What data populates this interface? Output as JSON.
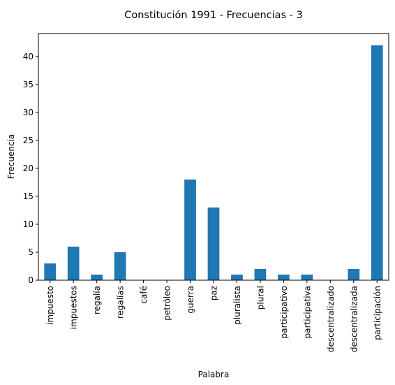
{
  "chart_data": {
    "type": "bar",
    "title": "Constitución 1991 - Frecuencias - 3",
    "xlabel": "Palabra",
    "ylabel": "Frecuencia",
    "categories": [
      "impuesto",
      "impuestos",
      "regalía",
      "regalías",
      "café",
      "petróleo",
      "guerra",
      "paz",
      "pluralista",
      "plural",
      "participativo",
      "participativa",
      "descentralizado",
      "descentralizada",
      "participación"
    ],
    "values": [
      3,
      6,
      1,
      5,
      0,
      0,
      18,
      13,
      1,
      2,
      1,
      1,
      0,
      2,
      42
    ],
    "ylim": [
      0,
      44.1
    ],
    "yticks": [
      0,
      5,
      10,
      15,
      20,
      25,
      30,
      35,
      40
    ],
    "bar_color": "#1f77b4",
    "grid": false,
    "legend": "none"
  }
}
